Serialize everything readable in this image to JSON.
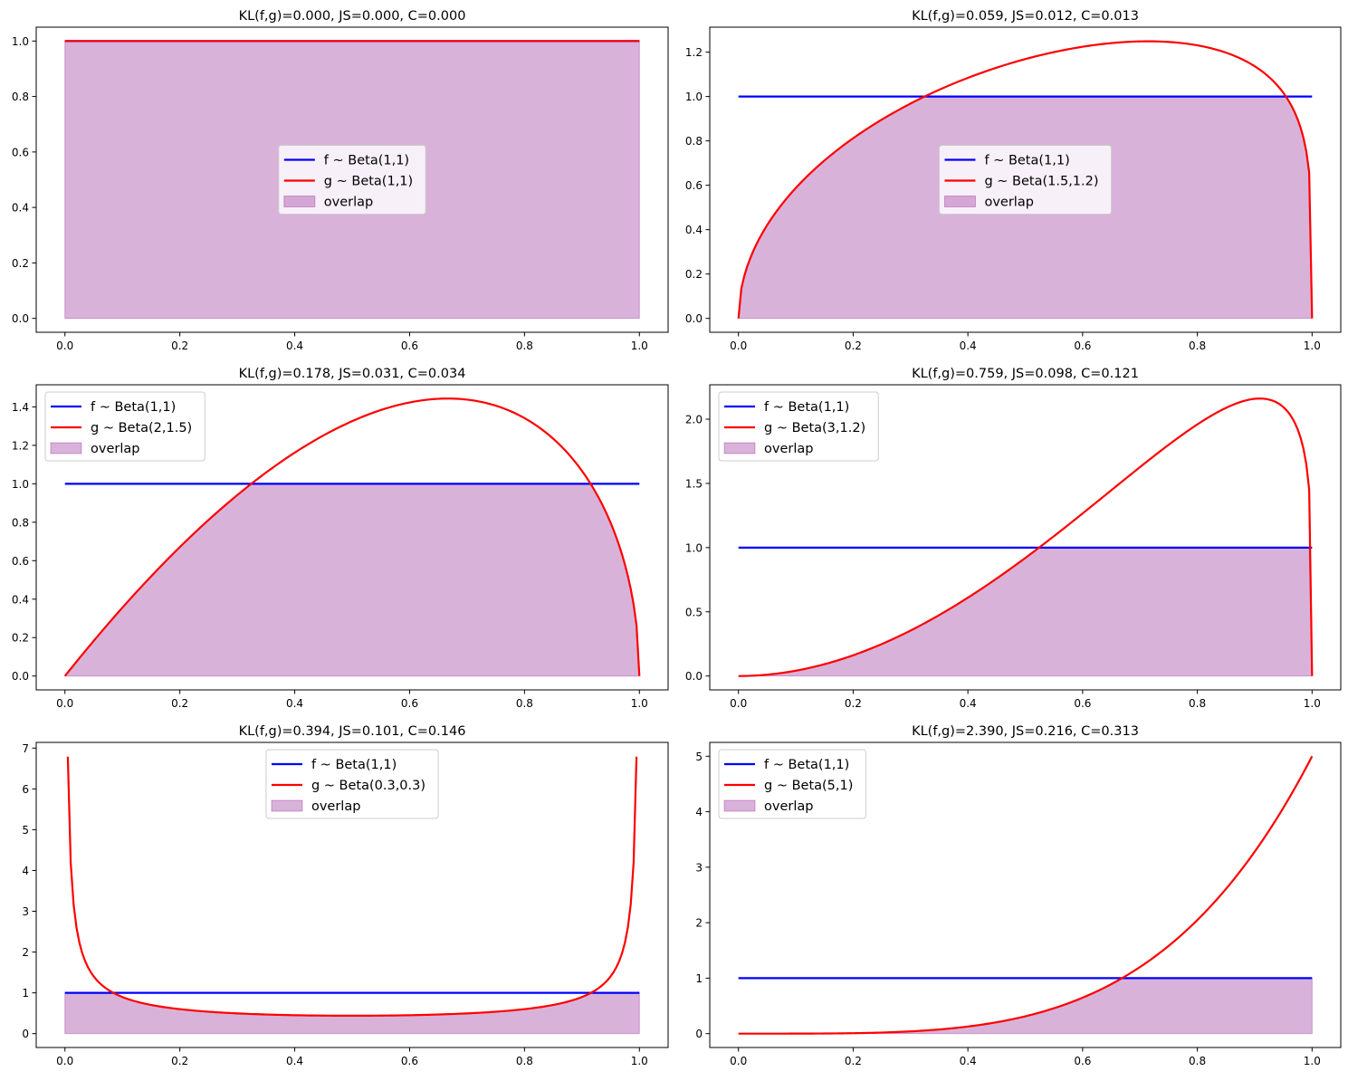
{
  "chart_data": [
    {
      "type": "line",
      "title": "KL(f,g)=0.000, JS=0.000, C=0.000",
      "legend_placement": "center",
      "xlim": [
        -0.05,
        1.05
      ],
      "ylim": [
        -0.05,
        1.05
      ],
      "xticks": [
        0,
        0.2,
        0.4,
        0.6,
        0.8,
        1.0
      ],
      "yticks": [
        0,
        0.2,
        0.4,
        0.6,
        0.8,
        1.0
      ],
      "tick_decimals": 1,
      "series": [
        {
          "name": "f ~ Beta(1,1)",
          "dist": "beta",
          "a": 1,
          "b": 1,
          "color": "#0000ff"
        },
        {
          "name": "g ~ Beta(1,1)",
          "dist": "beta",
          "a": 1,
          "b": 1,
          "color": "#ff0000"
        }
      ],
      "fill": {
        "name": "overlap",
        "of": "min(f,g)",
        "color": "#800080",
        "alpha": 0.3
      },
      "grid": false
    },
    {
      "type": "line",
      "title": "KL(f,g)=0.059, JS=0.012, C=0.013",
      "legend_placement": "center",
      "xlim": [
        -0.05,
        1.05
      ],
      "ylim": [
        -0.0625,
        1.3125
      ],
      "xticks": [
        0,
        0.2,
        0.4,
        0.6,
        0.8,
        1.0
      ],
      "yticks": [
        0,
        0.2,
        0.4,
        0.6,
        0.8,
        1.0,
        1.2
      ],
      "tick_decimals": 1,
      "series": [
        {
          "name": "f ~ Beta(1,1)",
          "dist": "beta",
          "a": 1,
          "b": 1,
          "color": "#0000ff"
        },
        {
          "name": "g ~ Beta(1.5,1.2)",
          "dist": "beta",
          "a": 1.5,
          "b": 1.2,
          "color": "#ff0000"
        }
      ],
      "fill": {
        "name": "overlap",
        "of": "min(f,g)",
        "color": "#800080",
        "alpha": 0.3
      },
      "grid": false
    },
    {
      "type": "line",
      "title": "KL(f,g)=0.178, JS=0.031, C=0.034",
      "legend_placement": "upper left",
      "xlim": [
        -0.05,
        1.05
      ],
      "ylim": [
        -0.072,
        1.515
      ],
      "xticks": [
        0,
        0.2,
        0.4,
        0.6,
        0.8,
        1.0
      ],
      "yticks": [
        0,
        0.2,
        0.4,
        0.6,
        0.8,
        1.0,
        1.2,
        1.4
      ],
      "tick_decimals": 1,
      "series": [
        {
          "name": "f ~ Beta(1,1)",
          "dist": "beta",
          "a": 1,
          "b": 1,
          "color": "#0000ff"
        },
        {
          "name": "g ~ Beta(2,1.5)",
          "dist": "beta",
          "a": 2,
          "b": 1.5,
          "color": "#ff0000"
        }
      ],
      "fill": {
        "name": "overlap",
        "of": "min(f,g)",
        "color": "#800080",
        "alpha": 0.3
      },
      "grid": false
    },
    {
      "type": "line",
      "title": "KL(f,g)=0.759, JS=0.098, C=0.121",
      "legend_placement": "upper left",
      "xlim": [
        -0.05,
        1.05
      ],
      "ylim": [
        -0.108,
        2.268
      ],
      "xticks": [
        0,
        0.2,
        0.4,
        0.6,
        0.8,
        1.0
      ],
      "yticks": [
        0,
        0.5,
        1.0,
        1.5,
        2.0
      ],
      "tick_decimals": 1,
      "series": [
        {
          "name": "f ~ Beta(1,1)",
          "dist": "beta",
          "a": 1,
          "b": 1,
          "color": "#0000ff"
        },
        {
          "name": "g ~ Beta(3,1.2)",
          "dist": "beta",
          "a": 3,
          "b": 1.2,
          "color": "#ff0000"
        }
      ],
      "fill": {
        "name": "overlap",
        "of": "min(f,g)",
        "color": "#800080",
        "alpha": 0.3
      },
      "grid": false
    },
    {
      "type": "line",
      "title": "KL(f,g)=0.394, JS=0.101, C=0.146",
      "legend_placement": "upper center",
      "xlim": [
        -0.05,
        1.05
      ],
      "ylim": [
        -0.34,
        7.14
      ],
      "xticks": [
        0,
        0.2,
        0.4,
        0.6,
        0.8,
        1.0
      ],
      "yticks": [
        0,
        1,
        2,
        3,
        4,
        5,
        6,
        7
      ],
      "tick_decimals": 0,
      "series": [
        {
          "name": "f ~ Beta(1,1)",
          "dist": "beta",
          "a": 1,
          "b": 1,
          "color": "#0000ff"
        },
        {
          "name": "g ~ Beta(0.3,0.3)",
          "dist": "beta",
          "a": 0.3,
          "b": 0.3,
          "color": "#ff0000"
        }
      ],
      "fill": {
        "name": "overlap",
        "of": "min(f,g)",
        "color": "#800080",
        "alpha": 0.3
      },
      "grid": false
    },
    {
      "type": "line",
      "title": "KL(f,g)=2.390, JS=0.216, C=0.313",
      "legend_placement": "upper left",
      "xlim": [
        -0.05,
        1.05
      ],
      "ylim": [
        -0.25,
        5.25
      ],
      "xticks": [
        0,
        0.2,
        0.4,
        0.6,
        0.8,
        1.0
      ],
      "yticks": [
        0,
        1,
        2,
        3,
        4,
        5
      ],
      "tick_decimals": 0,
      "series": [
        {
          "name": "f ~ Beta(1,1)",
          "dist": "beta",
          "a": 1,
          "b": 1,
          "color": "#0000ff"
        },
        {
          "name": "g ~ Beta(5,1)",
          "dist": "beta",
          "a": 5,
          "b": 1,
          "color": "#ff0000"
        }
      ],
      "fill": {
        "name": "overlap",
        "of": "min(f,g)",
        "color": "#800080",
        "alpha": 0.3
      },
      "grid": false
    }
  ]
}
